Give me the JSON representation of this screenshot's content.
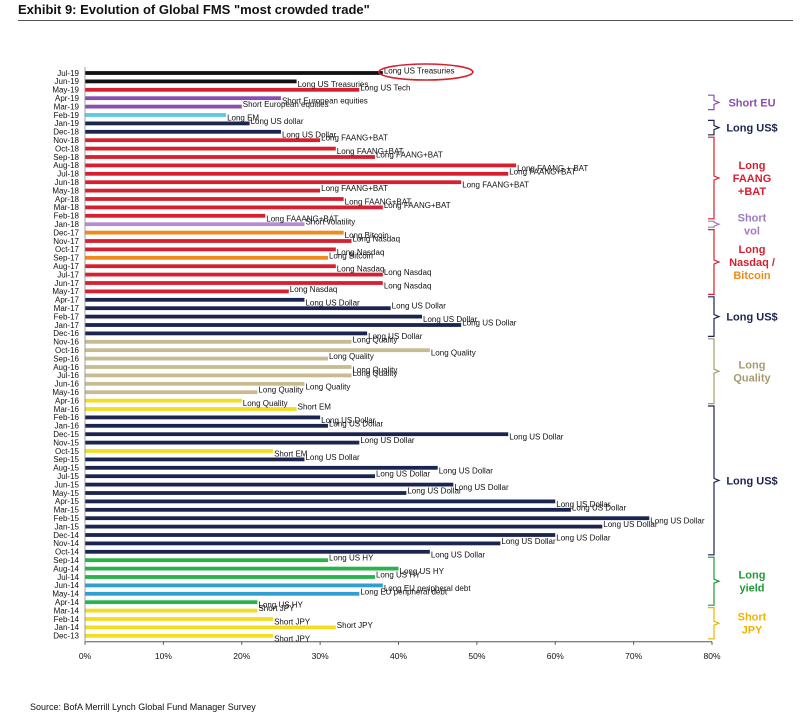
{
  "title": "Exhibit 9: Evolution of Global FMS \"most crowded trade\"",
  "source": "Source: BofA Merrill Lynch Global Fund Manager Survey",
  "colors": {
    "black": "#111111",
    "navy": "#1b2550",
    "red": "#d62030",
    "purple": "#8a4fb0",
    "lilac": "#b38fd0",
    "cyan": "#5bc8e6",
    "orange": "#f08a1c",
    "khaki": "#c8bb92",
    "yellow": "#f3dc22",
    "green": "#28b34b",
    "teal": "#2f9fd3",
    "gold": "#f2b500",
    "bracket_navy": "#1b2550",
    "bracket_red": "#d62030",
    "bracket_lilac": "#a07ac4",
    "bracket_khaki": "#a79b6e",
    "bracket_green": "#1e9a36",
    "bracket_yellow": "#f0b400",
    "bracket_orange": "#f08a1c"
  },
  "chart_data": {
    "type": "bar",
    "orientation": "horizontal",
    "xlim": [
      0,
      80
    ],
    "x_ticks": [
      "0%",
      "10%",
      "20%",
      "30%",
      "40%",
      "50%",
      "60%",
      "70%",
      "80%"
    ],
    "grid": false,
    "legend": "none",
    "highlight": "Jul-19",
    "categories": [
      "Jul-19",
      "Jun-19",
      "May-19",
      "Apr-19",
      "Mar-19",
      "Feb-19",
      "Jan-19",
      "Dec-18",
      "Nov-18",
      "Oct-18",
      "Sep-18",
      "Aug-18",
      "Jul-18",
      "Jun-18",
      "May-18",
      "Apr-18",
      "Mar-18",
      "Feb-18",
      "Jan-18",
      "Dec-17",
      "Nov-17",
      "Oct-17",
      "Sep-17",
      "Aug-17",
      "Jul-17",
      "Jun-17",
      "May-17",
      "Apr-17",
      "Mar-17",
      "Feb-17",
      "Jan-17",
      "Dec-16",
      "Nov-16",
      "Oct-16",
      "Sep-16",
      "Aug-16",
      "Jul-16",
      "Jun-16",
      "May-16",
      "Apr-16",
      "Mar-16",
      "Feb-16",
      "Jan-16",
      "Dec-15",
      "Nov-15",
      "Oct-15",
      "Sep-15",
      "Aug-15",
      "Jul-15",
      "Jun-15",
      "May-15",
      "Apr-15",
      "Mar-15",
      "Feb-15",
      "Jan-15",
      "Dec-14",
      "Nov-14",
      "Oct-14",
      "Sep-14",
      "Aug-14",
      "Jul-14",
      "Jun-14",
      "May-14",
      "Apr-14",
      "Mar-14",
      "Feb-14",
      "Jan-14",
      "Dec-13"
    ],
    "values": [
      38,
      27,
      35,
      25,
      20,
      18,
      21,
      25,
      30,
      32,
      37,
      55,
      54,
      48,
      30,
      33,
      38,
      23,
      28,
      33,
      34,
      32,
      31,
      32,
      38,
      38,
      26,
      28,
      39,
      43,
      48,
      36,
      34,
      44,
      31,
      34,
      34,
      28,
      22,
      20,
      27,
      30,
      31,
      54,
      35,
      24,
      28,
      45,
      37,
      47,
      41,
      60,
      62,
      72,
      66,
      60,
      53,
      44,
      31,
      40,
      37,
      38,
      35,
      22,
      22,
      24,
      32,
      24
    ],
    "bar_labels": [
      "Long US Treasuries",
      "Long US Treasuries",
      "Long US Tech",
      "Short European equities",
      "Short European equities",
      "Long EM",
      "Long US dollar",
      "Long US Dollar",
      "Long FAANG+BAT",
      "Long FAANG+BAT",
      "Long FAANG+BAT",
      "Long FAANG + BAT",
      "Long FAANG+BAT",
      "Long FAANG+BAT",
      "Long FAANG+BAT",
      "Long FAANG+BAT",
      "Long FAANG+BAT",
      "Long FAAANG+BAT",
      "Short volatility",
      "Long Bitcoin",
      "Long Nasdaq",
      "Long Nasdaq",
      "Long Bitcoin",
      "Long Nasdaq",
      "Long Nasdaq",
      "Long Nasdaq",
      "Long Nasdaq",
      "Long US Dollar",
      "Long US Dollar",
      "Long US Dollar",
      "Long US Dollar",
      "Long US Dollar",
      "Long Quality",
      "Long Quality",
      "Long Quality",
      "Long Quality",
      "Long Quality",
      "Long Quality",
      "Long Quality",
      "Long Quality",
      "Short EM",
      "Long US Dollar",
      "Long US Dollar",
      "Long US Dollar",
      "Long US Dollar",
      "Short EM",
      "Long US Dollar",
      "Long US Dollar",
      "Long US Dollar",
      "Long US Dollar",
      "Long US Dollar",
      "Long US Dollar",
      "Long US Dollar",
      "Long US Dollar",
      "Long US Dollar",
      "Long US Dollar",
      "Long US Dollar",
      "Long US Dollar",
      "Long US HY",
      "Long US HY",
      "Long US HY",
      "Long EU peripheral debt",
      "Long EU peripheral debt",
      "Long US HY",
      "Short JPY",
      "Short JPY",
      "Short JPY",
      "Short JPY"
    ],
    "bar_colors": [
      "black",
      "black",
      "red",
      "purple",
      "purple",
      "cyan",
      "navy",
      "navy",
      "red",
      "red",
      "red",
      "red",
      "red",
      "red",
      "red",
      "red",
      "red",
      "red",
      "lilac",
      "orange",
      "red",
      "red",
      "orange",
      "red",
      "red",
      "red",
      "red",
      "navy",
      "navy",
      "navy",
      "navy",
      "navy",
      "khaki",
      "khaki",
      "khaki",
      "khaki",
      "khaki",
      "khaki",
      "khaki",
      "yellow",
      "yellow",
      "navy",
      "navy",
      "navy",
      "navy",
      "yellow",
      "navy",
      "navy",
      "navy",
      "navy",
      "navy",
      "navy",
      "navy",
      "navy",
      "navy",
      "navy",
      "navy",
      "navy",
      "green",
      "green",
      "green",
      "teal",
      "teal",
      "green",
      "yellow",
      "yellow",
      "yellow",
      "yellow"
    ],
    "groups": [
      {
        "label": "Short EU",
        "from": 3,
        "to": 4,
        "color": "purple"
      },
      {
        "label": "Long US$",
        "from": 6,
        "to": 7,
        "color": "navy"
      },
      {
        "label": "Long FAANG +BAT",
        "from": 8,
        "to": 17,
        "color": "red"
      },
      {
        "label": "Short vol",
        "from": 18,
        "to": 18,
        "color": "lilac"
      },
      {
        "label": "Long Nasdaq / Bitcoin",
        "from": 19,
        "to": 26,
        "color": "red",
        "last_line_color": "orange"
      },
      {
        "label": "Long US$",
        "from": 27,
        "to": 31,
        "color": "navy"
      },
      {
        "label": "Long Quality",
        "from": 32,
        "to": 39,
        "color": "khaki"
      },
      {
        "label": "Long US$",
        "from": 40,
        "to": 57,
        "color": "navy"
      },
      {
        "label": "Long yield",
        "from": 58,
        "to": 63,
        "color": "green"
      },
      {
        "label": "Short JPY",
        "from": 64,
        "to": 67,
        "color": "yellow"
      }
    ]
  }
}
